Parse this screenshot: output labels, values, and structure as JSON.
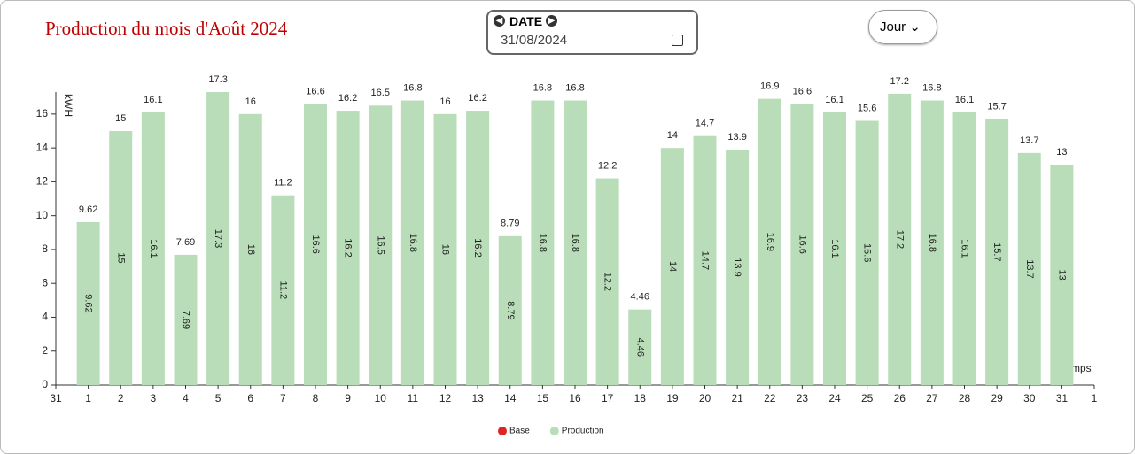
{
  "header": {
    "date_label": "DATE",
    "date_value": "31/08/2024",
    "period": "Jour"
  },
  "chart_data": {
    "type": "bar",
    "title": "Production du mois d'Août 2024",
    "y_label": "kWH",
    "x_label": "temps",
    "categories": [
      "31",
      "1",
      "2",
      "3",
      "4",
      "5",
      "6",
      "7",
      "8",
      "9",
      "10",
      "11",
      "12",
      "13",
      "14",
      "15",
      "16",
      "17",
      "18",
      "19",
      "20",
      "21",
      "22",
      "23",
      "24",
      "25",
      "26",
      "27",
      "28",
      "29",
      "30",
      "31",
      "1"
    ],
    "series": [
      {
        "name": "Base",
        "color": "#e02424",
        "values": [
          null,
          null,
          null,
          null,
          null,
          null,
          null,
          null,
          null,
          null,
          null,
          null,
          null,
          null,
          null,
          null,
          null,
          null,
          null,
          null,
          null,
          null,
          null,
          null,
          null,
          null,
          null,
          null,
          null,
          null,
          null,
          null,
          null
        ]
      },
      {
        "name": "Production",
        "color": "#b8ddb8",
        "values": [
          null,
          9.62,
          15,
          16.1,
          7.69,
          17.3,
          16,
          11.2,
          16.6,
          16.2,
          16.5,
          16.8,
          16,
          16.2,
          8.79,
          16.8,
          16.8,
          12.2,
          4.46,
          14,
          14.7,
          13.9,
          16.9,
          16.6,
          16.1,
          15.6,
          17.2,
          16.8,
          16.1,
          15.7,
          13.7,
          13,
          null
        ]
      }
    ],
    "ylim": [
      0,
      17.3
    ],
    "yticks": [
      0,
      2,
      4,
      6,
      8,
      10,
      12,
      14,
      16
    ]
  }
}
